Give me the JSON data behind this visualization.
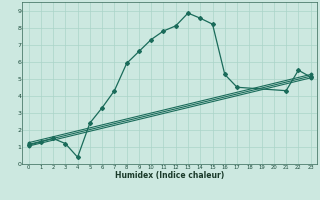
{
  "xlabel": "Humidex (Indice chaleur)",
  "background_color": "#cce8e0",
  "grid_color": "#aad4c8",
  "line_color": "#1a6b5a",
  "xlim": [
    -0.5,
    23.5
  ],
  "ylim": [
    0,
    9.5
  ],
  "xticks": [
    0,
    1,
    2,
    3,
    4,
    5,
    6,
    7,
    8,
    9,
    10,
    11,
    12,
    13,
    14,
    15,
    16,
    17,
    18,
    19,
    20,
    21,
    22,
    23
  ],
  "yticks": [
    0,
    1,
    2,
    3,
    4,
    5,
    6,
    7,
    8,
    9
  ],
  "series1_x": [
    0,
    1,
    2,
    3,
    4,
    5,
    6,
    7,
    8,
    9,
    10,
    11,
    12,
    13,
    14,
    15,
    16,
    17,
    21,
    22,
    23
  ],
  "series1_y": [
    1.1,
    1.3,
    1.5,
    1.2,
    0.4,
    2.4,
    3.3,
    4.3,
    5.9,
    6.6,
    7.3,
    7.8,
    8.1,
    8.85,
    8.55,
    8.2,
    5.25,
    4.5,
    4.3,
    5.5,
    5.1
  ],
  "series2_x": [
    0,
    23
  ],
  "series2_y": [
    1.05,
    5.05
  ],
  "series3_x": [
    0,
    23
  ],
  "series3_y": [
    1.15,
    5.15
  ],
  "series4_x": [
    0,
    23
  ],
  "series4_y": [
    1.25,
    5.25
  ]
}
